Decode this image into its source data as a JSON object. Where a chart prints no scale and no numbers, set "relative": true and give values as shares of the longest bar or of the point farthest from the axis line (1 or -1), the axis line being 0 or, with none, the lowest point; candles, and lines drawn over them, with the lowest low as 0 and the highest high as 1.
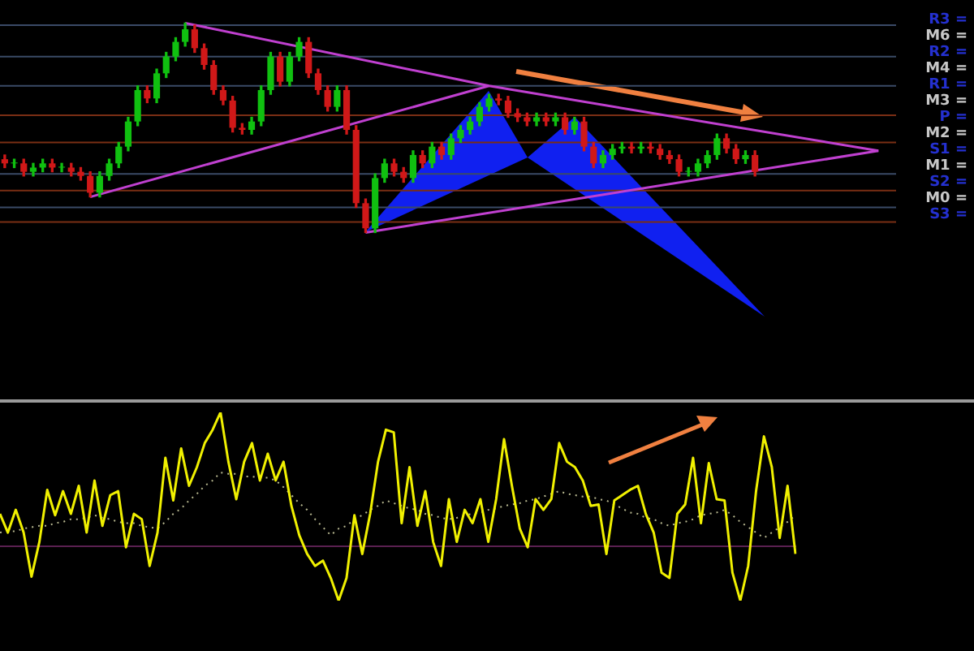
{
  "chart_data": [
    {
      "type": "candlestick",
      "relative": true,
      "categories": [
        null,
        null,
        null,
        null,
        null,
        null,
        null,
        null,
        null,
        null,
        null,
        null,
        null,
        null,
        null,
        null,
        null,
        null,
        null,
        null,
        null,
        null,
        null,
        null,
        null,
        null,
        null,
        null,
        null,
        null,
        null,
        null,
        null,
        null,
        null,
        null,
        null,
        null,
        null,
        null,
        null,
        null,
        null,
        null,
        null,
        null,
        null,
        null,
        null,
        null,
        null,
        null,
        null,
        null,
        null,
        null,
        null,
        null,
        null,
        null,
        null,
        null,
        null,
        null,
        null,
        null,
        null,
        null,
        null,
        null,
        null,
        null,
        null,
        null,
        null,
        null,
        null,
        null,
        null,
        null,
        null,
        null,
        null,
        null,
        null,
        null,
        null,
        null,
        null,
        null,
        null,
        null,
        null,
        null,
        null,
        null,
        null,
        null,
        null,
        null
      ],
      "ohlc": [
        [
          0.35,
          0.37,
          0.31,
          0.33
        ],
        [
          0.33,
          0.35,
          0.31,
          0.33
        ],
        [
          0.33,
          0.35,
          0.27,
          0.29
        ],
        [
          0.29,
          0.33,
          0.27,
          0.31
        ],
        [
          0.31,
          0.35,
          0.29,
          0.33
        ],
        [
          0.33,
          0.35,
          0.29,
          0.31
        ],
        [
          0.31,
          0.33,
          0.29,
          0.31
        ],
        [
          0.31,
          0.33,
          0.27,
          0.29
        ],
        [
          0.29,
          0.31,
          0.25,
          0.27
        ],
        [
          0.27,
          0.29,
          0.17,
          0.19
        ],
        [
          0.19,
          0.29,
          0.17,
          0.27
        ],
        [
          0.27,
          0.35,
          0.25,
          0.33
        ],
        [
          0.33,
          0.43,
          0.31,
          0.41
        ],
        [
          0.41,
          0.55,
          0.39,
          0.53
        ],
        [
          0.53,
          0.7,
          0.51,
          0.68
        ],
        [
          0.68,
          0.7,
          0.62,
          0.64
        ],
        [
          0.64,
          0.78,
          0.62,
          0.76
        ],
        [
          0.76,
          0.86,
          0.74,
          0.84
        ],
        [
          0.84,
          0.93,
          0.82,
          0.91
        ],
        [
          0.91,
          1,
          0.89,
          0.97
        ],
        [
          0.97,
          0.99,
          0.86,
          0.88
        ],
        [
          0.88,
          0.9,
          0.78,
          0.8
        ],
        [
          0.8,
          0.82,
          0.66,
          0.68
        ],
        [
          0.68,
          0.7,
          0.61,
          0.63
        ],
        [
          0.63,
          0.65,
          0.48,
          0.5
        ],
        [
          0.5,
          0.52,
          0.47,
          0.49
        ],
        [
          0.49,
          0.55,
          0.47,
          0.53
        ],
        [
          0.53,
          0.7,
          0.51,
          0.68
        ],
        [
          0.68,
          0.86,
          0.66,
          0.84
        ],
        [
          0.84,
          0.86,
          0.7,
          0.72
        ],
        [
          0.72,
          0.86,
          0.7,
          0.84
        ],
        [
          0.84,
          0.93,
          0.82,
          0.91
        ],
        [
          0.91,
          0.93,
          0.74,
          0.76
        ],
        [
          0.76,
          0.78,
          0.66,
          0.68
        ],
        [
          0.68,
          0.7,
          0.58,
          0.6
        ],
        [
          0.6,
          0.7,
          0.58,
          0.68
        ],
        [
          0.68,
          0.7,
          0.47,
          0.49
        ],
        [
          0.49,
          0.51,
          0.12,
          0.14
        ],
        [
          0.14,
          0.16,
          0,
          0.02
        ],
        [
          0.02,
          0.28,
          0,
          0.26
        ],
        [
          0.26,
          0.35,
          0.24,
          0.33
        ],
        [
          0.33,
          0.35,
          0.27,
          0.29
        ],
        [
          0.29,
          0.31,
          0.24,
          0.26
        ],
        [
          0.26,
          0.39,
          0.24,
          0.37
        ],
        [
          0.37,
          0.39,
          0.31,
          0.33
        ],
        [
          0.33,
          0.43,
          0.31,
          0.41
        ],
        [
          0.41,
          0.43,
          0.35,
          0.37
        ],
        [
          0.37,
          0.47,
          0.35,
          0.45
        ],
        [
          0.45,
          0.51,
          0.43,
          0.49
        ],
        [
          0.49,
          0.55,
          0.47,
          0.53
        ],
        [
          0.53,
          0.62,
          0.51,
          0.6
        ],
        [
          0.6,
          0.66,
          0.58,
          0.64
        ],
        [
          0.64,
          0.66,
          0.61,
          0.63
        ],
        [
          0.63,
          0.65,
          0.55,
          0.57
        ],
        [
          0.57,
          0.59,
          0.53,
          0.55
        ],
        [
          0.55,
          0.57,
          0.51,
          0.53
        ],
        [
          0.53,
          0.57,
          0.51,
          0.55
        ],
        [
          0.55,
          0.57,
          0.51,
          0.53
        ],
        [
          0.53,
          0.57,
          0.51,
          0.55
        ],
        [
          0.55,
          0.57,
          0.47,
          0.49
        ],
        [
          0.49,
          0.55,
          0.47,
          0.53
        ],
        [
          0.53,
          0.55,
          0.39,
          0.41
        ],
        [
          0.41,
          0.43,
          0.31,
          0.33
        ],
        [
          0.33,
          0.39,
          0.31,
          0.37
        ],
        [
          0.37,
          0.42,
          0.35,
          0.4
        ],
        [
          0.4,
          0.43,
          0.38,
          0.41
        ],
        [
          0.41,
          0.43,
          0.38,
          0.4
        ],
        [
          0.4,
          0.43,
          0.38,
          0.41
        ],
        [
          0.41,
          0.43,
          0.38,
          0.4
        ],
        [
          0.4,
          0.42,
          0.35,
          0.37
        ],
        [
          0.37,
          0.39,
          0.33,
          0.35
        ],
        [
          0.35,
          0.37,
          0.27,
          0.29
        ],
        [
          0.29,
          0.31,
          0.27,
          0.29
        ],
        [
          0.29,
          0.35,
          0.27,
          0.33
        ],
        [
          0.33,
          0.39,
          0.31,
          0.37
        ],
        [
          0.37,
          0.47,
          0.35,
          0.45
        ],
        [
          0.45,
          0.47,
          0.38,
          0.4
        ],
        [
          0.4,
          0.42,
          0.33,
          0.35
        ],
        [
          0.35,
          0.39,
          0.33,
          0.37
        ],
        [
          0.37,
          0.39,
          0.27,
          0.29
        ],
        null,
        null,
        null,
        null,
        null,
        null,
        null,
        null,
        null,
        null,
        null,
        null,
        null,
        null,
        null,
        null,
        null,
        null,
        null,
        null
      ],
      "series": [
        {
          "type": "line",
          "color": "#c040d0",
          "values": [
            null,
            null,
            null,
            null,
            null,
            null,
            null,
            null,
            null,
            null,
            null,
            null,
            null,
            null,
            null,
            null,
            null,
            null,
            null,
            1,
            null,
            null,
            null,
            null,
            null,
            null,
            null,
            null,
            null,
            null,
            null,
            null,
            null,
            null,
            null,
            null,
            null,
            null,
            null,
            null,
            null,
            null,
            null,
            null,
            null,
            null,
            null,
            null,
            null,
            null,
            null,
            0.7,
            null,
            null,
            null,
            null,
            null,
            null,
            null,
            null,
            null,
            null,
            null,
            null,
            null,
            null,
            null,
            null,
            null,
            null,
            null,
            null,
            null,
            null,
            null,
            null,
            null,
            null,
            null,
            null,
            null,
            null,
            null,
            null,
            null,
            null,
            null,
            null,
            null,
            null,
            null,
            null,
            0.39,
            null,
            null,
            null,
            null,
            null,
            null,
            null
          ]
        },
        {
          "type": "line",
          "color": "#c040d0",
          "values": [
            null,
            null,
            null,
            null,
            null,
            null,
            null,
            null,
            null,
            0.17,
            null,
            null,
            null,
            null,
            null,
            null,
            null,
            null,
            null,
            null,
            null,
            null,
            null,
            null,
            null,
            null,
            null,
            null,
            null,
            null,
            null,
            null,
            null,
            null,
            null,
            null,
            null,
            null,
            null,
            null,
            null,
            null,
            null,
            null,
            null,
            null,
            null,
            null,
            null,
            null,
            null,
            0.7,
            null,
            null,
            null,
            null,
            null,
            null,
            null,
            null,
            null,
            null,
            null,
            null,
            null,
            null,
            null,
            null,
            null,
            null,
            null,
            null,
            null,
            null,
            null,
            null,
            null,
            null,
            null,
            null,
            null,
            null,
            null,
            null,
            null,
            null,
            null,
            null,
            null,
            null,
            null,
            null,
            null,
            null,
            null,
            null,
            null,
            null,
            null,
            null
          ]
        },
        {
          "type": "line",
          "color": "#c040d0",
          "values": [
            null,
            null,
            null,
            null,
            null,
            null,
            null,
            null,
            null,
            null,
            null,
            null,
            null,
            null,
            null,
            null,
            null,
            null,
            null,
            null,
            null,
            null,
            null,
            null,
            null,
            null,
            null,
            null,
            null,
            null,
            null,
            null,
            null,
            null,
            null,
            null,
            null,
            null,
            0,
            null,
            null,
            null,
            null,
            null,
            null,
            null,
            null,
            null,
            null,
            null,
            null,
            null,
            null,
            null,
            null,
            null,
            null,
            null,
            null,
            null,
            null,
            null,
            null,
            null,
            null,
            null,
            null,
            null,
            null,
            null,
            null,
            null,
            null,
            null,
            null,
            null,
            null,
            null,
            null,
            null,
            null,
            null,
            null,
            null,
            null,
            null,
            null,
            null,
            null,
            null,
            null,
            null,
            0.39,
            null,
            null,
            null,
            null,
            null,
            null,
            null
          ]
        }
      ],
      "ref_lines": [
        {
          "axis": "y",
          "value": 0.99,
          "color": "#3a4a66"
        },
        {
          "axis": "y",
          "value": 0.84,
          "color": "#3a4a66"
        },
        {
          "axis": "y",
          "value": 0.7,
          "color": "#3a4a66"
        },
        {
          "axis": "y",
          "value": 0.28,
          "color": "#3a4a66"
        },
        {
          "axis": "y",
          "value": 0.12,
          "color": "#3a4a66"
        },
        {
          "axis": "y",
          "value": 0.56,
          "color": "#7a2e14"
        },
        {
          "axis": "y",
          "value": 0.43,
          "color": "#7a2e14"
        },
        {
          "axis": "y",
          "value": 0.2,
          "color": "#7a2e14"
        },
        {
          "axis": "y",
          "value": 0.05,
          "color": "#7a2e14"
        }
      ],
      "annotations": [
        "R3 =",
        "M6 =",
        "R2 =",
        "M4 =",
        "R1 =",
        "M3 =",
        "P =",
        "M2 =",
        "S1 =",
        "M1 =",
        "S2 =",
        "M0 =",
        "S3 ="
      ]
    },
    {
      "type": "line",
      "relative": true,
      "categories": [
        null,
        null,
        null,
        null,
        null,
        null,
        null,
        null,
        null,
        null,
        null,
        null,
        null,
        null,
        null,
        null,
        null,
        null,
        null,
        null,
        null,
        null,
        null,
        null,
        null,
        null,
        null,
        null,
        null,
        null,
        null,
        null,
        null,
        null,
        null,
        null,
        null,
        null,
        null,
        null,
        null,
        null,
        null,
        null,
        null,
        null,
        null,
        null,
        null,
        null,
        null,
        null,
        null,
        null,
        null,
        null,
        null,
        null,
        null,
        null,
        null,
        null,
        null,
        null,
        null,
        null,
        null,
        null,
        null,
        null,
        null,
        null,
        null,
        null,
        null,
        null,
        null,
        null,
        null,
        null,
        null,
        null,
        null,
        null,
        null,
        null,
        null,
        null,
        null,
        null,
        null,
        null,
        null,
        null,
        null,
        null,
        null,
        null,
        null,
        null,
        null,
        null
      ],
      "series": [
        {
          "color": "#f0f000",
          "line_style": "solid",
          "values": [
            0.24,
            0.1,
            0.27,
            0.1,
            -0.23,
            0.03,
            0.42,
            0.23,
            0.41,
            0.24,
            0.45,
            0.1,
            0.49,
            0.15,
            0.38,
            0.41,
            -0.01,
            0.24,
            0.2,
            -0.15,
            0.1,
            0.66,
            0.34,
            0.73,
            0.45,
            0.59,
            0.77,
            0.87,
            1,
            0.63,
            0.35,
            0.63,
            0.77,
            0.49,
            0.69,
            0.49,
            0.63,
            0.3,
            0.08,
            -0.06,
            -0.15,
            -0.11,
            -0.24,
            -0.41,
            -0.24,
            0.23,
            -0.06,
            0.24,
            0.63,
            0.87,
            0.85,
            0.17,
            0.59,
            0.15,
            0.41,
            0.03,
            -0.15,
            0.35,
            0.03,
            0.27,
            0.17,
            0.35,
            0.03,
            0.35,
            0.8,
            0.45,
            0.13,
            -0.01,
            0.35,
            0.27,
            0.35,
            0.77,
            0.63,
            0.59,
            0.49,
            0.3,
            0.31,
            -0.06,
            0.34,
            0.38,
            0.42,
            0.45,
            0.24,
            0.1,
            -0.2,
            -0.24,
            0.24,
            0.31,
            0.66,
            0.17,
            0.62,
            0.35,
            0.34,
            -0.2,
            -0.41,
            -0.15,
            0.41,
            0.82,
            0.59,
            0.06,
            0.45,
            -0.06
          ]
        },
        {
          "color": "#b8b890",
          "line_style": "dotted",
          "values": [
            0.1,
            0.11,
            0.11,
            0.13,
            0.14,
            0.15,
            0.15,
            0.17,
            0.18,
            0.2,
            0.2,
            0.21,
            0.23,
            0.21,
            0.2,
            0.18,
            0.17,
            0.17,
            0.15,
            0.14,
            0.13,
            0.18,
            0.24,
            0.28,
            0.34,
            0.39,
            0.45,
            0.49,
            0.55,
            0.54,
            0.54,
            0.52,
            0.52,
            0.51,
            0.51,
            0.49,
            0.44,
            0.38,
            0.32,
            0.27,
            0.2,
            0.14,
            0.08,
            0.13,
            0.15,
            0.2,
            0.23,
            0.27,
            0.3,
            0.34,
            0.32,
            0.3,
            0.28,
            0.27,
            0.24,
            0.23,
            0.21,
            0.2,
            0.21,
            0.23,
            0.24,
            0.25,
            0.27,
            0.28,
            0.3,
            0.31,
            0.32,
            0.34,
            0.35,
            0.37,
            0.39,
            0.41,
            0.39,
            0.38,
            0.37,
            0.37,
            0.35,
            0.34,
            0.31,
            0.28,
            0.25,
            0.24,
            0.21,
            0.2,
            0.17,
            0.15,
            0.17,
            0.18,
            0.2,
            0.23,
            0.24,
            0.25,
            0.27,
            0.23,
            0.18,
            0.14,
            0.1,
            0.06,
            0.1,
            0.14,
            0.18,
            0.23
          ]
        }
      ]
    }
  ]
}
